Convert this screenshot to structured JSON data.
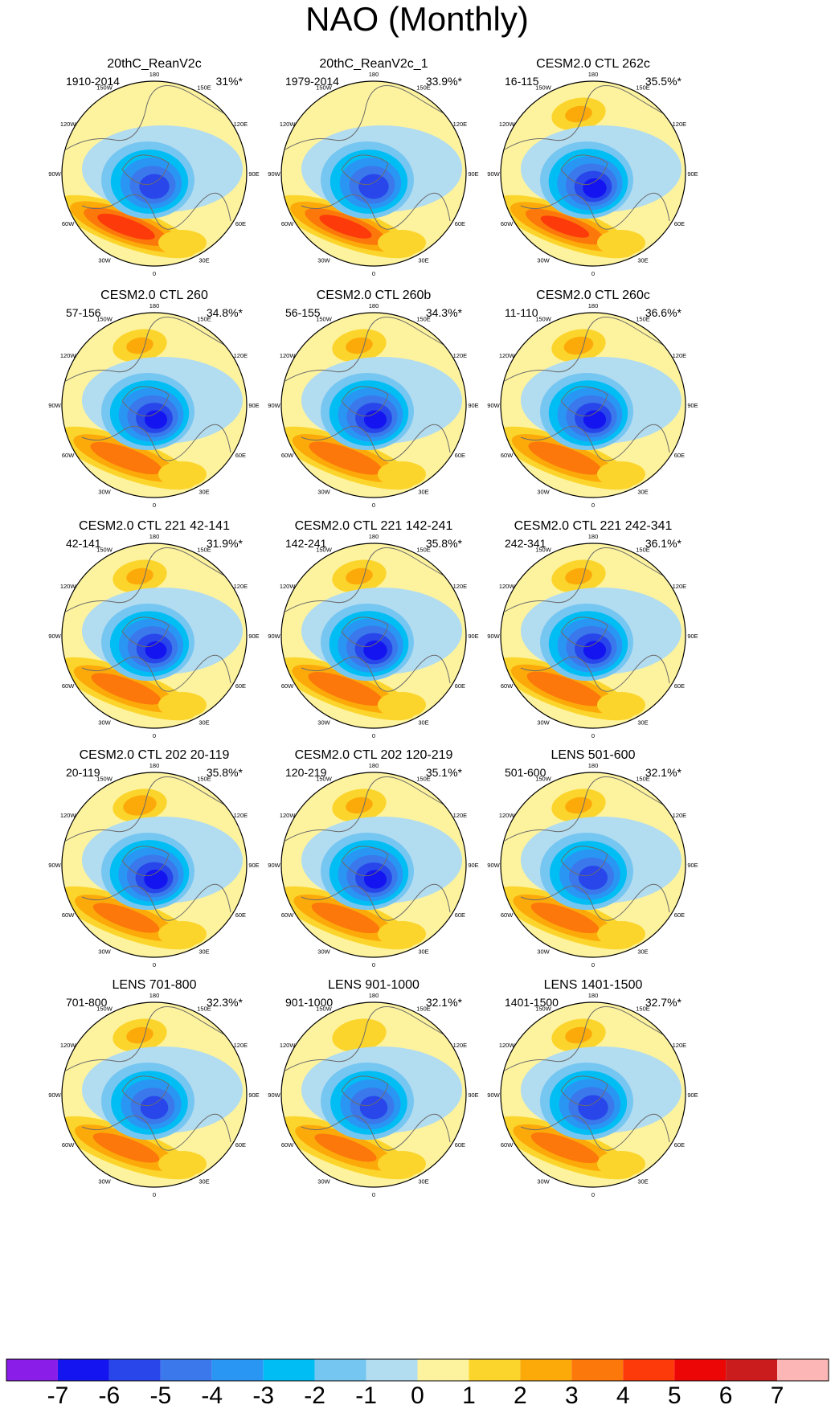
{
  "chart_data": {
    "type": "polar-stereographic contour maps (sea-level pressure anomaly pattern)",
    "title": "NAO (Monthly)",
    "longitude_labels": [
      "180",
      "150E",
      "120E",
      "90E",
      "60E",
      "30E",
      "0",
      "30W",
      "60W",
      "90W",
      "120W",
      "150W"
    ],
    "panels": [
      {
        "title": "20thC_ReanV2c",
        "period": "1910-2014",
        "variance": "31%*",
        "low_strength": 5.5,
        "high_strength": 4.5,
        "pacific_high": 0
      },
      {
        "title": "20thC_ReanV2c_1",
        "period": "1979-2014",
        "variance": "33.9%*",
        "low_strength": 5.5,
        "high_strength": 4.2,
        "pacific_high": 0
      },
      {
        "title": "CESM2.0 CTL 262c",
        "period": "16-115",
        "variance": "35.5%*",
        "low_strength": 6.3,
        "high_strength": 4.0,
        "pacific_high": 2.0
      },
      {
        "title": "CESM2.0 CTL 260",
        "period": "57-156",
        "variance": "34.8%*",
        "low_strength": 6.2,
        "high_strength": 3.5,
        "pacific_high": 2.0
      },
      {
        "title": "CESM2.0 CTL 260b",
        "period": "56-155",
        "variance": "34.3%*",
        "low_strength": 6.2,
        "high_strength": 3.6,
        "pacific_high": 2.0
      },
      {
        "title": "CESM2.0 CTL 260c",
        "period": "11-110",
        "variance": "36.6%*",
        "low_strength": 6.2,
        "high_strength": 3.6,
        "pacific_high": 2.2
      },
      {
        "title": "CESM2.0 CTL 221 42-141",
        "period": "42-141",
        "variance": "31.9%*",
        "low_strength": 6.1,
        "high_strength": 3.4,
        "pacific_high": 2.0
      },
      {
        "title": "CESM2.0 CTL 221 142-241",
        "period": "142-241",
        "variance": "35.8%*",
        "low_strength": 6.3,
        "high_strength": 3.7,
        "pacific_high": 2.0
      },
      {
        "title": "CESM2.0 CTL 221 242-341",
        "period": "242-341",
        "variance": "36.1%*",
        "low_strength": 6.2,
        "high_strength": 3.8,
        "pacific_high": 2.0
      },
      {
        "title": "CESM2.0 CTL 202 20-119",
        "period": "20-119",
        "variance": "35.8%*",
        "low_strength": 6.3,
        "high_strength": 3.2,
        "pacific_high": 2.6
      },
      {
        "title": "CESM2.0 CTL 202 120-219",
        "period": "120-219",
        "variance": "35.1%*",
        "low_strength": 6.2,
        "high_strength": 3.3,
        "pacific_high": 2.0
      },
      {
        "title": "LENS 501-600",
        "period": "501-600",
        "variance": "32.1%*",
        "low_strength": 5.4,
        "high_strength": 3.3,
        "pacific_high": 2.0
      },
      {
        "title": "LENS 701-800",
        "period": "701-800",
        "variance": "32.3%*",
        "low_strength": 5.3,
        "high_strength": 3.2,
        "pacific_high": 2.0
      },
      {
        "title": "LENS 901-1000",
        "period": "901-1000",
        "variance": "32.1%*",
        "low_strength": 5.3,
        "high_strength": 3.0,
        "pacific_high": 1.8
      },
      {
        "title": "LENS 1401-1500",
        "period": "1401-1500",
        "variance": "32.7%*",
        "low_strength": 5.5,
        "high_strength": 3.3,
        "pacific_high": 2.0
      }
    ],
    "colorbar": {
      "levels": [
        -7,
        -6,
        -5,
        -4,
        -3,
        -2,
        -1,
        0,
        1,
        2,
        3,
        4,
        5,
        6,
        7
      ],
      "labels": [
        "-7",
        "-6",
        "-5",
        "-4",
        "-3",
        "-2",
        "-1",
        "0",
        "1",
        "2",
        "3",
        "4",
        "5",
        "6",
        "7"
      ],
      "colors": [
        "#8a1ee8",
        "#1414f0",
        "#2846ea",
        "#3a78ec",
        "#2a96f4",
        "#00bef4",
        "#76c6f2",
        "#b2dcf0",
        "#fdf39e",
        "#fcd52c",
        "#fcaa0a",
        "#fc780a",
        "#fc3a0a",
        "#ec0606",
        "#ca1c1c",
        "#fcb6b6"
      ]
    }
  }
}
